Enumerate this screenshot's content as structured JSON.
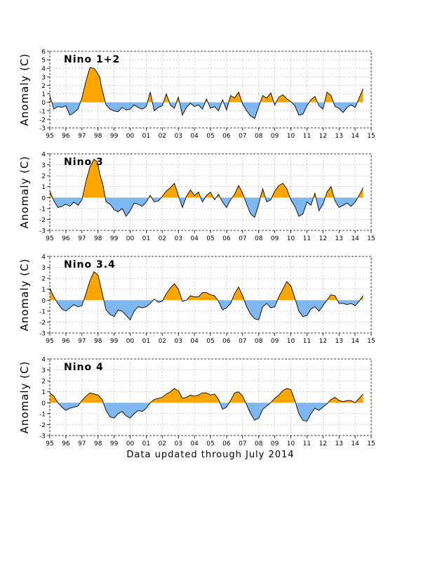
{
  "footer": "Data updated through July 2014",
  "colors": {
    "positive": "#FFA500",
    "negative": "#7FB8F0",
    "line": "#000000",
    "grid": "#9a9a9a"
  },
  "chart_data": [
    {
      "type": "area",
      "title": "Nino 1+2",
      "ylabel": "Anomaly (C)",
      "xlabel": "",
      "x_tick_labels": [
        "95",
        "96",
        "97",
        "98",
        "99",
        "00",
        "01",
        "02",
        "03",
        "04",
        "05",
        "06",
        "07",
        "08",
        "09",
        "10",
        "11",
        "12",
        "13",
        "14",
        "15"
      ],
      "xlim": [
        1995.0,
        2015.0
      ],
      "ylim": [
        -3,
        6
      ],
      "y_ticks": [
        -3,
        -2,
        -1,
        0,
        1,
        2,
        3,
        4,
        5,
        6
      ],
      "grid": true,
      "x": [
        1995.0,
        1995.25,
        1995.5,
        1995.75,
        1996.0,
        1996.25,
        1996.5,
        1996.75,
        1997.0,
        1997.25,
        1997.5,
        1997.75,
        1997.9,
        1998.1,
        1998.25,
        1998.5,
        1998.75,
        1999.0,
        1999.25,
        1999.5,
        1999.75,
        2000.0,
        2000.25,
        2000.5,
        2000.75,
        2001.0,
        2001.25,
        2001.5,
        2001.75,
        2002.0,
        2002.25,
        2002.5,
        2002.75,
        2003.0,
        2003.25,
        2003.5,
        2003.75,
        2004.0,
        2004.25,
        2004.5,
        2004.75,
        2005.0,
        2005.25,
        2005.5,
        2005.75,
        2006.0,
        2006.25,
        2006.5,
        2006.75,
        2007.0,
        2007.25,
        2007.5,
        2007.75,
        2008.0,
        2008.25,
        2008.5,
        2008.75,
        2009.0,
        2009.25,
        2009.5,
        2009.75,
        2010.0,
        2010.25,
        2010.5,
        2010.75,
        2011.0,
        2011.25,
        2011.5,
        2011.75,
        2012.0,
        2012.25,
        2012.5,
        2012.75,
        2013.0,
        2013.25,
        2013.5,
        2013.75,
        2014.0,
        2014.25,
        2014.5
      ],
      "values": [
        0.8,
        -0.8,
        -0.5,
        -0.6,
        -0.4,
        -1.5,
        -1.2,
        -0.8,
        0.5,
        2.5,
        4.1,
        4.0,
        3.6,
        3.0,
        1.5,
        -0.3,
        -0.8,
        -1.0,
        -1.1,
        -0.6,
        -0.9,
        -0.8,
        -0.3,
        -0.6,
        -0.8,
        -0.5,
        1.2,
        -1.0,
        -0.6,
        -0.4,
        1.0,
        -0.3,
        -0.7,
        0.6,
        -1.5,
        -0.6,
        -0.1,
        -0.5,
        -0.3,
        -0.8,
        0.4,
        -0.7,
        -0.5,
        -1.0,
        0.3,
        -0.9,
        0.8,
        0.5,
        1.2,
        -0.2,
        -1.0,
        -1.6,
        -1.9,
        -0.5,
        0.8,
        0.5,
        1.1,
        -0.3,
        0.6,
        0.9,
        0.4,
        0.1,
        -0.4,
        -1.5,
        -1.4,
        -0.4,
        0.3,
        0.7,
        -0.4,
        -0.8,
        1.2,
        0.8,
        -0.5,
        -0.7,
        -1.2,
        -0.6,
        -0.3,
        -0.6,
        0.5,
        1.6
      ]
    },
    {
      "type": "area",
      "title": "Nino 3",
      "ylabel": "Anomaly (C)",
      "xlabel": "",
      "x_tick_labels": [
        "95",
        "96",
        "97",
        "98",
        "99",
        "00",
        "01",
        "02",
        "03",
        "04",
        "05",
        "06",
        "07",
        "08",
        "09",
        "10",
        "11",
        "12",
        "13",
        "14",
        "15"
      ],
      "xlim": [
        1995.0,
        2015.0
      ],
      "ylim": [
        -3,
        4
      ],
      "y_ticks": [
        -3,
        -2,
        -1,
        0,
        1,
        2,
        3,
        4
      ],
      "grid": true,
      "x": [
        1995.0,
        1995.25,
        1995.5,
        1995.75,
        1996.0,
        1996.25,
        1996.5,
        1996.75,
        1997.0,
        1997.25,
        1997.5,
        1997.75,
        1997.95,
        1998.1,
        1998.3,
        1998.5,
        1998.75,
        1999.0,
        1999.25,
        1999.5,
        1999.75,
        2000.0,
        2000.25,
        2000.5,
        2000.75,
        2001.0,
        2001.25,
        2001.5,
        2001.75,
        2002.0,
        2002.25,
        2002.5,
        2002.75,
        2003.0,
        2003.25,
        2003.5,
        2003.75,
        2004.0,
        2004.25,
        2004.5,
        2004.75,
        2005.0,
        2005.25,
        2005.5,
        2005.75,
        2006.0,
        2006.25,
        2006.5,
        2006.75,
        2007.0,
        2007.25,
        2007.5,
        2007.75,
        2008.0,
        2008.25,
        2008.5,
        2008.75,
        2009.0,
        2009.25,
        2009.5,
        2009.75,
        2010.0,
        2010.25,
        2010.5,
        2010.75,
        2011.0,
        2011.25,
        2011.5,
        2011.75,
        2012.0,
        2012.25,
        2012.5,
        2012.75,
        2013.0,
        2013.25,
        2013.5,
        2013.75,
        2014.0,
        2014.25,
        2014.5
      ],
      "values": [
        0.6,
        -0.3,
        -0.9,
        -0.8,
        -0.6,
        -0.8,
        -0.4,
        -0.7,
        -0.2,
        1.5,
        2.8,
        3.5,
        3.3,
        2.2,
        1.2,
        -0.4,
        -0.6,
        -1.1,
        -1.3,
        -1.0,
        -1.7,
        -1.2,
        -0.5,
        -0.6,
        -0.8,
        -0.4,
        0.2,
        -0.4,
        -0.3,
        0.1,
        0.6,
        0.9,
        1.3,
        0.2,
        -0.9,
        0.1,
        0.7,
        0.2,
        0.5,
        -0.4,
        0.2,
        0.5,
        -0.2,
        0.3,
        -0.4,
        -0.9,
        -0.2,
        0.3,
        1.1,
        0.4,
        -0.6,
        -1.5,
        -1.8,
        -0.6,
        0.8,
        -0.4,
        -0.2,
        0.6,
        1.1,
        1.3,
        0.8,
        -0.2,
        -0.8,
        -1.7,
        -1.5,
        -0.4,
        -0.7,
        0.4,
        -1.2,
        -0.6,
        0.5,
        1.0,
        -0.3,
        -0.9,
        -0.7,
        -0.5,
        -0.8,
        -0.4,
        0.2,
        0.9
      ]
    },
    {
      "type": "area",
      "title": "Nino 3.4",
      "ylabel": "Anomaly (C)",
      "xlabel": "",
      "x_tick_labels": [
        "95",
        "96",
        "97",
        "98",
        "99",
        "00",
        "01",
        "02",
        "03",
        "04",
        "05",
        "06",
        "07",
        "08",
        "09",
        "10",
        "11",
        "12",
        "13",
        "14",
        "15"
      ],
      "xlim": [
        1995.0,
        2015.0
      ],
      "ylim": [
        -3,
        4
      ],
      "y_ticks": [
        -3,
        -2,
        -1,
        0,
        1,
        2,
        3,
        4
      ],
      "grid": true,
      "x": [
        1995.0,
        1995.25,
        1995.5,
        1995.75,
        1996.0,
        1996.25,
        1996.5,
        1996.75,
        1997.0,
        1997.25,
        1997.5,
        1997.75,
        1998.0,
        1998.25,
        1998.5,
        1998.75,
        1999.0,
        1999.25,
        1999.5,
        1999.75,
        2000.0,
        2000.25,
        2000.5,
        2000.75,
        2001.0,
        2001.25,
        2001.5,
        2001.75,
        2002.0,
        2002.25,
        2002.5,
        2002.75,
        2003.0,
        2003.25,
        2003.5,
        2003.75,
        2004.0,
        2004.25,
        2004.5,
        2004.75,
        2005.0,
        2005.25,
        2005.5,
        2005.75,
        2006.0,
        2006.25,
        2006.5,
        2006.75,
        2007.0,
        2007.25,
        2007.5,
        2007.75,
        2008.0,
        2008.25,
        2008.5,
        2008.75,
        2009.0,
        2009.25,
        2009.5,
        2009.75,
        2010.0,
        2010.25,
        2010.5,
        2010.75,
        2011.0,
        2011.25,
        2011.5,
        2011.75,
        2012.0,
        2012.25,
        2012.5,
        2012.75,
        2013.0,
        2013.25,
        2013.5,
        2013.75,
        2014.0,
        2014.25,
        2014.5
      ],
      "values": [
        1.1,
        0.3,
        -0.3,
        -0.8,
        -1.0,
        -0.7,
        -0.4,
        -0.6,
        -0.5,
        0.6,
        1.8,
        2.6,
        2.3,
        0.7,
        -0.9,
        -1.3,
        -1.5,
        -0.9,
        -1.0,
        -1.4,
        -1.8,
        -1.0,
        -0.6,
        -0.7,
        -0.6,
        -0.3,
        0.1,
        -0.2,
        -0.1,
        0.6,
        1.1,
        1.5,
        1.0,
        -0.1,
        0.0,
        0.4,
        0.3,
        0.3,
        0.7,
        0.7,
        0.5,
        0.4,
        -0.1,
        -0.9,
        -0.7,
        -0.3,
        0.6,
        1.2,
        0.4,
        -0.6,
        -1.3,
        -1.7,
        -1.8,
        -0.6,
        -0.3,
        -0.7,
        -0.6,
        0.3,
        1.0,
        1.7,
        1.3,
        0.2,
        -1.0,
        -1.5,
        -1.4,
        -0.8,
        -0.6,
        -1.0,
        -0.5,
        0.0,
        0.5,
        0.4,
        -0.3,
        -0.3,
        -0.4,
        -0.3,
        -0.5,
        -0.1,
        0.4
      ]
    },
    {
      "type": "area",
      "title": "Nino 4",
      "ylabel": "Anomaly (C)",
      "xlabel": "",
      "x_tick_labels": [
        "95",
        "96",
        "97",
        "98",
        "99",
        "00",
        "01",
        "02",
        "03",
        "04",
        "05",
        "06",
        "07",
        "08",
        "09",
        "10",
        "11",
        "12",
        "13",
        "14",
        "15"
      ],
      "xlim": [
        1995.0,
        2015.0
      ],
      "ylim": [
        -3,
        4
      ],
      "y_ticks": [
        -3,
        -2,
        -1,
        0,
        1,
        2,
        3,
        4
      ],
      "grid": true,
      "x": [
        1995.0,
        1995.25,
        1995.5,
        1995.75,
        1996.0,
        1996.25,
        1996.5,
        1996.75,
        1997.0,
        1997.25,
        1997.5,
        1997.75,
        1998.0,
        1998.25,
        1998.5,
        1998.75,
        1999.0,
        1999.25,
        1999.5,
        1999.75,
        2000.0,
        2000.25,
        2000.5,
        2000.75,
        2001.0,
        2001.25,
        2001.5,
        2001.75,
        2002.0,
        2002.25,
        2002.5,
        2002.75,
        2003.0,
        2003.25,
        2003.5,
        2003.75,
        2004.0,
        2004.25,
        2004.5,
        2004.75,
        2005.0,
        2005.25,
        2005.5,
        2005.75,
        2006.0,
        2006.25,
        2006.5,
        2006.75,
        2007.0,
        2007.25,
        2007.5,
        2007.75,
        2008.0,
        2008.25,
        2008.5,
        2008.75,
        2009.0,
        2009.25,
        2009.5,
        2009.75,
        2010.0,
        2010.25,
        2010.5,
        2010.75,
        2011.0,
        2011.25,
        2011.5,
        2011.75,
        2012.0,
        2012.25,
        2012.5,
        2012.75,
        2013.0,
        2013.25,
        2013.5,
        2013.75,
        2014.0,
        2014.25,
        2014.5
      ],
      "values": [
        0.9,
        0.6,
        0.0,
        -0.4,
        -0.7,
        -0.5,
        -0.4,
        -0.3,
        0.2,
        0.6,
        0.9,
        0.8,
        0.7,
        0.3,
        -0.7,
        -1.3,
        -1.4,
        -1.0,
        -0.8,
        -1.2,
        -1.4,
        -1.0,
        -0.7,
        -0.8,
        -0.5,
        0.0,
        0.3,
        0.4,
        0.5,
        0.8,
        1.0,
        1.3,
        1.1,
        0.4,
        0.5,
        0.7,
        0.6,
        0.7,
        0.9,
        0.9,
        0.7,
        0.8,
        0.3,
        -0.6,
        -0.4,
        0.2,
        0.9,
        1.0,
        0.6,
        -0.2,
        -1.0,
        -1.6,
        -1.4,
        -0.6,
        -0.3,
        0.0,
        0.4,
        0.7,
        1.1,
        1.3,
        1.2,
        0.2,
        -1.0,
        -1.6,
        -1.7,
        -1.0,
        -0.5,
        -0.7,
        -0.4,
        -0.1,
        0.3,
        0.5,
        0.2,
        0.1,
        0.2,
        0.2,
        0.0,
        0.4,
        0.8
      ]
    }
  ]
}
